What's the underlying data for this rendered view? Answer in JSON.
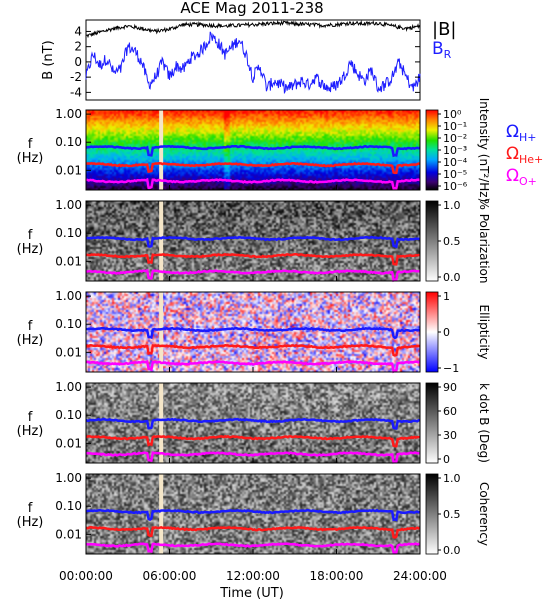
{
  "figure": {
    "title": "ACE Mag 2011-238",
    "xlabel": "Time (UT)"
  },
  "chart_data": [
    {
      "type": "line",
      "ylabel": "B (nT)",
      "ylim": [
        -5,
        5.5
      ],
      "yticks": [
        "4",
        "2",
        "0",
        "-2",
        "-4"
      ],
      "legend": [
        "|B|",
        "B_R"
      ],
      "series": [
        {
          "name": "|B|",
          "color": "#000000",
          "x_hours": [
            0,
            1,
            2,
            3,
            4,
            5,
            6,
            7,
            8,
            9,
            10,
            11,
            12,
            13,
            14,
            15,
            16,
            17,
            18,
            19,
            20,
            21,
            22,
            23,
            24
          ],
          "values": [
            3.4,
            3.9,
            4.4,
            4.7,
            4.4,
            4.0,
            4.3,
            4.9,
            4.9,
            4.8,
            4.7,
            4.8,
            4.9,
            5.0,
            5.1,
            5.0,
            4.9,
            4.8,
            4.9,
            5.1,
            5.0,
            5.1,
            4.7,
            4.4,
            4.7
          ]
        },
        {
          "name": "B_R",
          "color": "#1e1eff",
          "x_hours": [
            0,
            0.5,
            1,
            1.5,
            2,
            2.5,
            3,
            3.5,
            4,
            4.5,
            5,
            5.5,
            6,
            6.5,
            7,
            7.5,
            8,
            8.5,
            9,
            9.5,
            10,
            10.5,
            11,
            11.5,
            12,
            12.5,
            13,
            13.5,
            14,
            14.5,
            15,
            15.5,
            16,
            16.5,
            17,
            17.5,
            18,
            18.5,
            19,
            19.5,
            20,
            20.5,
            21,
            21.5,
            22,
            22.5,
            23,
            23.5,
            24
          ],
          "values": [
            -2,
            1,
            -0.5,
            0.5,
            -1.5,
            -1,
            2,
            1.5,
            0,
            -3,
            -2,
            0,
            -2,
            -0.5,
            -1,
            0.5,
            1,
            2,
            3.5,
            2.5,
            1,
            2,
            3,
            1,
            -2,
            -0.5,
            -3.5,
            -2.5,
            -3,
            -3.5,
            -3,
            -2.5,
            -3,
            -2,
            -3,
            -3.5,
            -3,
            -2,
            0,
            -1.5,
            -2.5,
            -1,
            -3.5,
            -3,
            -2,
            0,
            -2,
            -3.5,
            -2
          ]
        }
      ]
    },
    {
      "type": "heatmap",
      "name": "Intensity",
      "ylabel": "f (Hz)",
      "yticks": [
        "1.00",
        "0.10",
        "0.01"
      ],
      "colorbar": {
        "label": "Intensity (nT²/Hz)",
        "ticks": [
          "10⁰",
          "10⁻¹",
          "10⁻²",
          "10⁻³",
          "10⁻⁴",
          "10⁻⁵",
          "10⁻⁶"
        ]
      },
      "legend": [
        "Ω_H+",
        "Ω_He+",
        "Ω_O+"
      ]
    },
    {
      "type": "heatmap",
      "name": "% Polarization",
      "ylabel": "f (Hz)",
      "yticks": [
        "1.00",
        "0.10",
        "0.01"
      ],
      "colorbar": {
        "label": "% Polarization",
        "ticks": [
          "1.0",
          "0.5",
          "0.0"
        ]
      }
    },
    {
      "type": "heatmap",
      "name": "Ellipticity",
      "ylabel": "f (Hz)",
      "yticks": [
        "1.00",
        "0.10",
        "0.01"
      ],
      "colorbar": {
        "label": "Ellipticity",
        "ticks": [
          "1",
          "0",
          "−1"
        ]
      }
    },
    {
      "type": "heatmap",
      "name": "k dot B",
      "ylabel": "f (Hz)",
      "yticks": [
        "1.00",
        "0.10",
        "0.01"
      ],
      "colorbar": {
        "label": "k dot B (Deg)",
        "ticks": [
          "90",
          "60",
          "30",
          "0"
        ]
      }
    },
    {
      "type": "heatmap",
      "name": "Coherency",
      "ylabel": "f (Hz)",
      "yticks": [
        "1.00",
        "0.10",
        "0.01"
      ],
      "colorbar": {
        "label": "Coherency",
        "ticks": [
          "1.0",
          "0.5",
          "0.0"
        ]
      }
    }
  ],
  "xticks": [
    "00:00:00",
    "06:00:00",
    "12:00:00",
    "18:00:00",
    "24:00:00"
  ],
  "overlay_lines": {
    "Ω_H+": {
      "color": "#1a1aff",
      "freq_hz": 0.065
    },
    "Ω_He+": {
      "color": "#ff1a1a",
      "freq_hz": 0.016
    },
    "Ω_O+": {
      "color": "#ff00ff",
      "freq_hz": 0.0042
    }
  },
  "data_gap_hours": 5.4
}
